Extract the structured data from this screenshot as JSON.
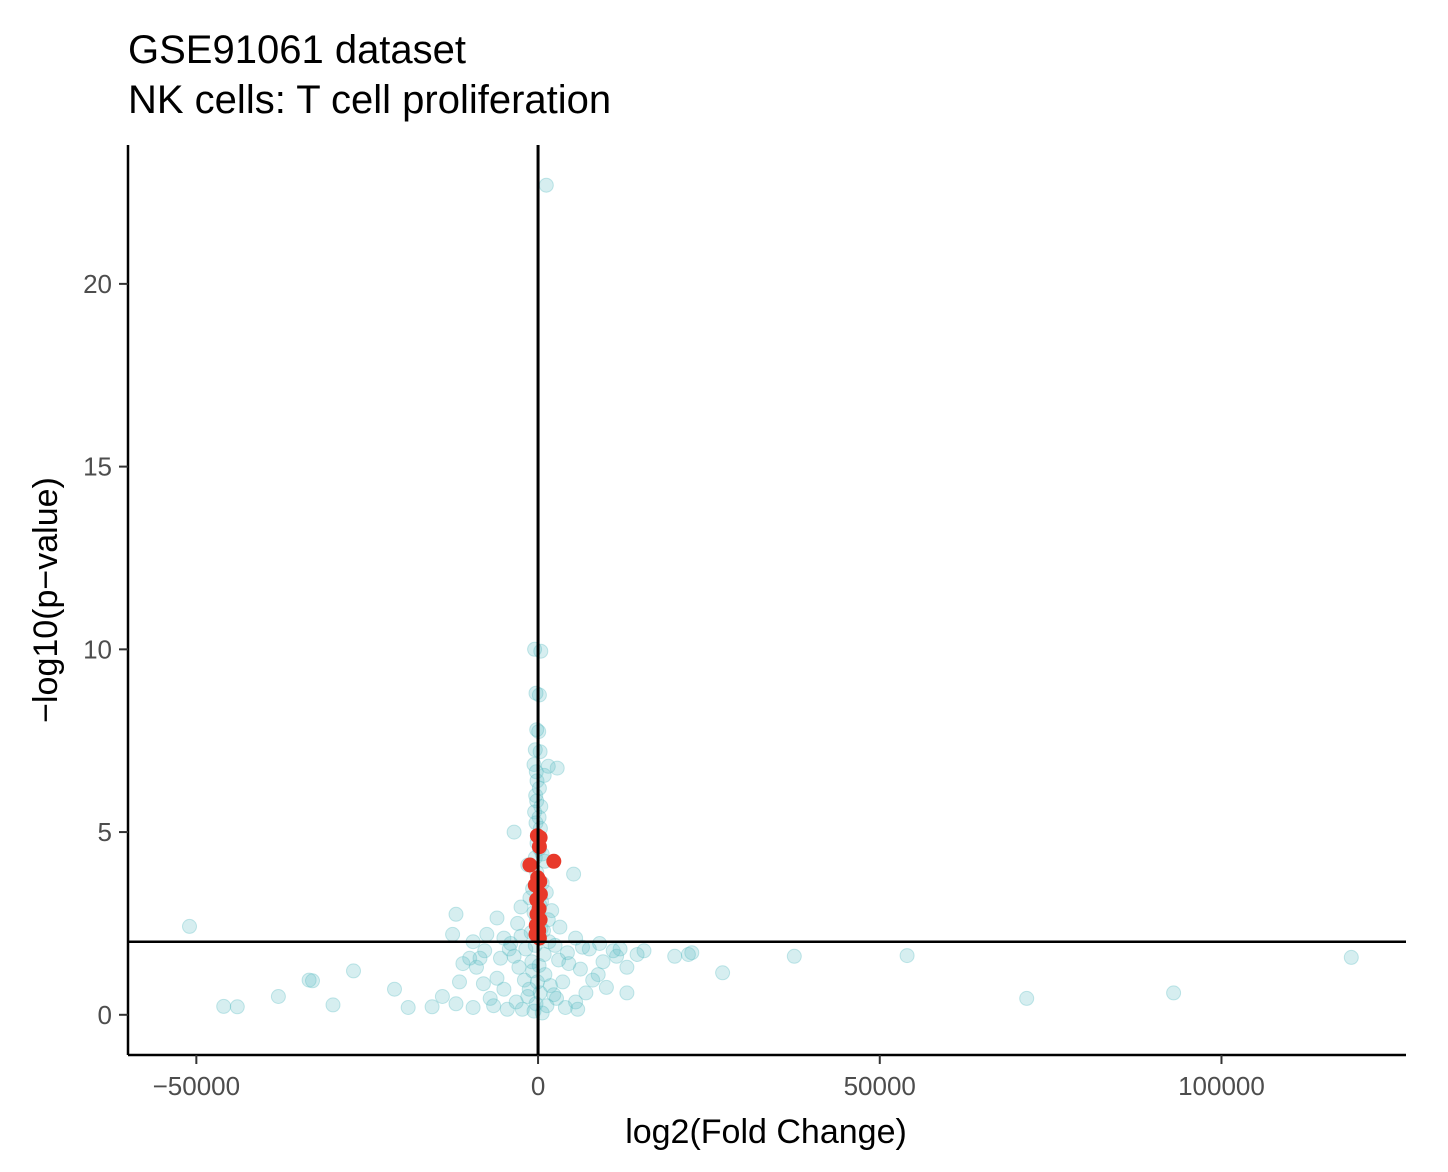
{
  "chart_data": {
    "type": "scatter",
    "title": "GSE91061 dataset",
    "subtitle": "NK cells: T cell proliferation",
    "xlabel": "log2(Fold Change)",
    "ylabel": "−log10(p−value)",
    "xlim": [
      -60000,
      127000
    ],
    "ylim": [
      -1.1,
      23.8
    ],
    "x_ticks": [
      -50000,
      0,
      50000,
      100000
    ],
    "x_tick_labels": [
      "−50000",
      "0",
      "50000",
      "100000"
    ],
    "y_ticks": [
      0,
      5,
      10,
      15,
      20
    ],
    "y_tick_labels": [
      "0",
      "5",
      "10",
      "15",
      "20"
    ],
    "reference_lines": {
      "vertical_x": 0,
      "horizontal_y": 2
    },
    "grid": false,
    "legend": "none",
    "colors": {
      "background_genes": "#5bbcc4",
      "highlight_genes": "#e8392a",
      "axis": "#000000"
    },
    "series": [
      {
        "points": [
          [
            1200,
            22.7
          ],
          [
            -500,
            10.0
          ],
          [
            400,
            9.95
          ],
          [
            -300,
            8.8
          ],
          [
            200,
            8.75
          ],
          [
            -200,
            7.8
          ],
          [
            100,
            7.75
          ],
          [
            -400,
            7.25
          ],
          [
            300,
            7.2
          ],
          [
            -600,
            6.85
          ],
          [
            1500,
            6.8
          ],
          [
            2800,
            6.75
          ],
          [
            -250,
            6.65
          ],
          [
            900,
            6.55
          ],
          [
            -150,
            6.4
          ],
          [
            200,
            6.2
          ],
          [
            -350,
            6.0
          ],
          [
            -200,
            5.85
          ],
          [
            400,
            5.7
          ],
          [
            -500,
            5.55
          ],
          [
            150,
            5.4
          ],
          [
            -300,
            5.25
          ],
          [
            350,
            5.1
          ],
          [
            -3500,
            5.0
          ],
          [
            -150,
            4.7
          ],
          [
            200,
            4.55
          ],
          [
            600,
            4.4
          ],
          [
            -400,
            4.3
          ],
          [
            1000,
            4.2
          ],
          [
            -1500,
            4.1
          ],
          [
            5200,
            3.85
          ],
          [
            -200,
            3.9
          ],
          [
            600,
            3.6
          ],
          [
            -800,
            3.45
          ],
          [
            1200,
            3.35
          ],
          [
            -1200,
            3.2
          ],
          [
            500,
            3.1
          ],
          [
            -2500,
            2.95
          ],
          [
            2000,
            2.85
          ],
          [
            -600,
            2.8
          ],
          [
            -12000,
            2.75
          ],
          [
            -6000,
            2.65
          ],
          [
            1500,
            2.6
          ],
          [
            -3000,
            2.5
          ],
          [
            3200,
            2.4
          ],
          [
            -51000,
            2.42
          ],
          [
            -12500,
            2.2
          ],
          [
            -7500,
            2.2
          ],
          [
            -9500,
            2.0
          ],
          [
            -2500,
            2.15
          ],
          [
            -5000,
            2.1
          ],
          [
            -1000,
            2.25
          ],
          [
            800,
            2.3
          ],
          [
            5500,
            2.1
          ],
          [
            -4000,
            1.95
          ],
          [
            2500,
            1.9
          ],
          [
            6500,
            1.85
          ],
          [
            7500,
            1.8
          ],
          [
            11000,
            1.75
          ],
          [
            12000,
            1.8
          ],
          [
            15500,
            1.75
          ],
          [
            14500,
            1.65
          ],
          [
            20000,
            1.6
          ],
          [
            22000,
            1.65
          ],
          [
            22500,
            1.7
          ],
          [
            37500,
            1.6
          ],
          [
            54000,
            1.62
          ],
          [
            119000,
            1.57
          ],
          [
            -10000,
            1.55
          ],
          [
            -5500,
            1.55
          ],
          [
            -11000,
            1.4
          ],
          [
            -9000,
            1.3
          ],
          [
            -3500,
            1.6
          ],
          [
            3000,
            1.5
          ],
          [
            4500,
            1.4
          ],
          [
            9500,
            1.45
          ],
          [
            13000,
            1.3
          ],
          [
            27000,
            1.15
          ],
          [
            -27000,
            1.2
          ],
          [
            -33000,
            0.93
          ],
          [
            -33500,
            0.95
          ],
          [
            -21000,
            0.7
          ],
          [
            -38000,
            0.5
          ],
          [
            -30000,
            0.27
          ],
          [
            -46000,
            0.23
          ],
          [
            -44000,
            0.22
          ],
          [
            -19000,
            0.2
          ],
          [
            -15500,
            0.22
          ],
          [
            -12000,
            0.3
          ],
          [
            -8000,
            0.85
          ],
          [
            -7000,
            0.45
          ],
          [
            -6500,
            0.25
          ],
          [
            -5000,
            0.7
          ],
          [
            -2000,
            0.95
          ],
          [
            7000,
            0.6
          ],
          [
            8000,
            0.95
          ],
          [
            10000,
            0.75
          ],
          [
            13000,
            0.6
          ],
          [
            71500,
            0.45
          ],
          [
            93000,
            0.6
          ],
          [
            -9500,
            0.2
          ],
          [
            -4500,
            0.15
          ],
          [
            4000,
            0.2
          ],
          [
            5500,
            0.35
          ],
          [
            -1500,
            0.5
          ],
          [
            1800,
            0.8
          ],
          [
            -800,
            1.2
          ],
          [
            1000,
            1.1
          ],
          [
            -2800,
            1.3
          ],
          [
            2700,
            0.45
          ],
          [
            -600,
            0.1
          ],
          [
            600,
            0.05
          ],
          [
            -300,
            0.3
          ],
          [
            300,
            0.6
          ],
          [
            -1800,
            1.8
          ],
          [
            1600,
            2.0
          ],
          [
            -900,
            1.45
          ],
          [
            900,
            1.65
          ],
          [
            -3200,
            0.35
          ],
          [
            3600,
            0.9
          ],
          [
            -6000,
            1.0
          ],
          [
            6200,
            1.25
          ],
          [
            -8500,
            1.55
          ],
          [
            8800,
            1.1
          ],
          [
            -4200,
            1.8
          ],
          [
            4300,
            1.7
          ],
          [
            -200,
            2.6
          ],
          [
            250,
            3.0
          ],
          [
            -100,
            0.9
          ],
          [
            150,
            1.35
          ],
          [
            -400,
            1.9
          ],
          [
            450,
            2.35
          ],
          [
            -1300,
            0.7
          ],
          [
            1300,
            0.25
          ],
          [
            -2300,
            0.15
          ],
          [
            2300,
            0.55
          ],
          [
            -11500,
            0.9
          ],
          [
            11500,
            1.6
          ],
          [
            -14000,
            0.5
          ],
          [
            9000,
            1.95
          ],
          [
            -7800,
            1.75
          ],
          [
            5800,
            0.15
          ]
        ]
      },
      {
        "points": [
          [
            -100,
            4.9
          ],
          [
            300,
            4.85
          ],
          [
            200,
            4.6
          ],
          [
            -1200,
            4.1
          ],
          [
            2300,
            4.2
          ],
          [
            -50,
            3.75
          ],
          [
            250,
            3.65
          ],
          [
            -400,
            3.55
          ],
          [
            350,
            3.3
          ],
          [
            -200,
            3.15
          ],
          [
            150,
            2.9
          ],
          [
            -150,
            2.75
          ],
          [
            300,
            2.6
          ],
          [
            -250,
            2.45
          ],
          [
            100,
            2.3
          ],
          [
            -300,
            2.2
          ],
          [
            200,
            2.1
          ]
        ]
      }
    ]
  }
}
